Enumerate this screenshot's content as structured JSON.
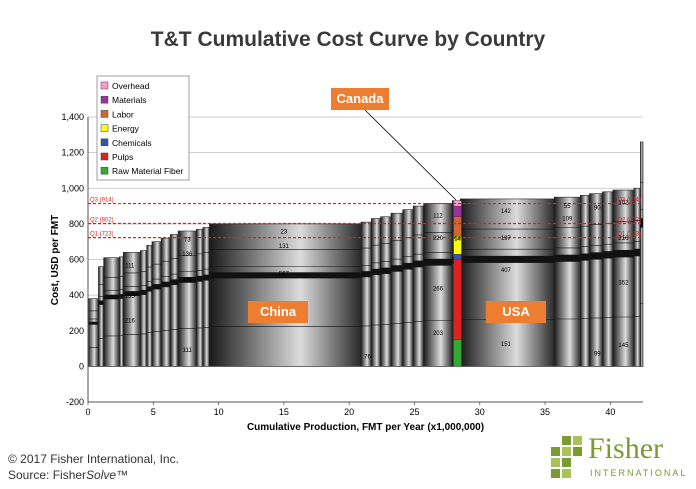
{
  "title": "T&T Cumulative Cost Curve by Country",
  "chart_data": {
    "type": "bar",
    "xlabel": "Cumulative Production, FMT per Year (x1,000,000)",
    "ylabel": "Cost, USD per FMT",
    "xlim": [
      0,
      42.5
    ],
    "ylim": [
      -200,
      1400
    ],
    "x_ticks": [
      "0",
      "5",
      "10",
      "15",
      "20",
      "25",
      "30",
      "35",
      "40"
    ],
    "y_ticks": [
      "-200",
      "0",
      "200",
      "400",
      "600",
      "800",
      "1,000",
      "1,200",
      "1,400"
    ],
    "legend": {
      "placement": "top-left",
      "entries": [
        {
          "name": "Overhead",
          "color": "#ff99cc"
        },
        {
          "name": "Materials",
          "color": "#993399"
        },
        {
          "name": "Labor",
          "color": "#cc6633"
        },
        {
          "name": "Energy",
          "color": "#ffff00"
        },
        {
          "name": "Chemicals",
          "color": "#3355aa"
        },
        {
          "name": "Pulps",
          "color": "#dd2222"
        },
        {
          "name": "Raw Material Fiber",
          "color": "#33aa33"
        }
      ]
    },
    "quartiles": [
      {
        "label": "Q1 (723)",
        "value": 723
      },
      {
        "label": "Q2 (802)",
        "value": 802
      },
      {
        "label": "Q3 (914)",
        "value": 914
      }
    ],
    "mill_bars": [
      {
        "x0": 0.0,
        "x1": 0.8,
        "total": 380
      },
      {
        "x0": 0.8,
        "x1": 1.2,
        "total": 560
      },
      {
        "x0": 1.2,
        "x1": 2.4,
        "total": 610
      },
      {
        "x0": 2.4,
        "x1": 2.7,
        "total": 615
      },
      {
        "x0": 2.7,
        "x1": 4.0,
        "total": 640
      },
      {
        "x0": 4.0,
        "x1": 4.5,
        "total": 650
      },
      {
        "x0": 4.5,
        "x1": 4.9,
        "total": 680
      },
      {
        "x0": 4.9,
        "x1": 5.6,
        "total": 700
      },
      {
        "x0": 5.6,
        "x1": 6.3,
        "total": 720
      },
      {
        "x0": 6.3,
        "x1": 6.9,
        "total": 740
      },
      {
        "x0": 6.9,
        "x1": 8.3,
        "total": 760
      },
      {
        "x0": 8.3,
        "x1": 8.8,
        "total": 770
      },
      {
        "x0": 8.8,
        "x1": 9.3,
        "total": 780
      },
      {
        "x0": 9.3,
        "x1": 20.9,
        "total": 800
      },
      {
        "x0": 20.9,
        "x1": 21.7,
        "total": 810
      },
      {
        "x0": 21.7,
        "x1": 22.4,
        "total": 830
      },
      {
        "x0": 22.4,
        "x1": 23.2,
        "total": 840
      },
      {
        "x0": 23.2,
        "x1": 24.1,
        "total": 860
      },
      {
        "x0": 24.1,
        "x1": 24.9,
        "total": 880
      },
      {
        "x0": 24.9,
        "x1": 25.7,
        "total": 900
      },
      {
        "x0": 25.7,
        "x1": 27.9,
        "total": 915
      },
      {
        "x0": 27.9,
        "x1": 28.5,
        "total": 930
      },
      {
        "x0": 28.5,
        "x1": 35.7,
        "total": 940
      },
      {
        "x0": 35.7,
        "x1": 37.7,
        "total": 950
      },
      {
        "x0": 37.7,
        "x1": 38.4,
        "total": 960
      },
      {
        "x0": 38.4,
        "x1": 39.4,
        "total": 970
      },
      {
        "x0": 39.4,
        "x1": 40.2,
        "total": 980
      },
      {
        "x0": 40.2,
        "x1": 41.8,
        "total": 990
      },
      {
        "x0": 41.8,
        "x1": 42.3,
        "total": 1000
      },
      {
        "x0": 42.3,
        "x1": 42.5,
        "total": 1260
      }
    ],
    "canada_bar": {
      "x0": 28.0,
      "x1": 28.6,
      "total": 930,
      "segments": [
        {
          "component": "Raw Material Fiber",
          "value": 150
        },
        {
          "component": "Pulps",
          "value": 450
        },
        {
          "component": "Chemicals",
          "value": 30
        },
        {
          "component": "Energy",
          "value": 100
        },
        {
          "component": "Labor",
          "value": 110
        },
        {
          "component": "Materials",
          "value": 60
        },
        {
          "component": "Overhead",
          "value": 30
        }
      ]
    },
    "data_labels": [
      {
        "text": "111",
        "x": 3.2,
        "y": 555
      },
      {
        "text": "135",
        "x": 3.2,
        "y": 385
      },
      {
        "text": "216",
        "x": 3.2,
        "y": 245
      },
      {
        "text": "73",
        "x": 7.6,
        "y": 700
      },
      {
        "text": "136",
        "x": 7.6,
        "y": 620
      },
      {
        "text": "375",
        "x": 7.6,
        "y": 470
      },
      {
        "text": "111",
        "x": 7.6,
        "y": 80
      },
      {
        "text": "23",
        "x": 15.0,
        "y": 745
      },
      {
        "text": "131",
        "x": 15.0,
        "y": 665
      },
      {
        "text": "597",
        "x": 15.0,
        "y": 510
      },
      {
        "text": "76",
        "x": 21.4,
        "y": 45
      },
      {
        "text": "112",
        "x": 26.8,
        "y": 835
      },
      {
        "text": "220",
        "x": 26.8,
        "y": 710
      },
      {
        "text": "266",
        "x": 26.8,
        "y": 425
      },
      {
        "text": "203",
        "x": 26.8,
        "y": 175
      },
      {
        "text": "94",
        "x": 28.3,
        "y": 705
      },
      {
        "text": "142",
        "x": 32.0,
        "y": 860
      },
      {
        "text": "197",
        "x": 32.0,
        "y": 710
      },
      {
        "text": "407",
        "x": 32.0,
        "y": 530
      },
      {
        "text": "151",
        "x": 32.0,
        "y": 115
      },
      {
        "text": "55",
        "x": 36.7,
        "y": 890
      },
      {
        "text": "109",
        "x": 36.7,
        "y": 820
      },
      {
        "text": "90",
        "x": 39.0,
        "y": 880
      },
      {
        "text": "99",
        "x": 39.0,
        "y": 60
      },
      {
        "text": "102",
        "x": 41.0,
        "y": 910
      },
      {
        "text": "216",
        "x": 41.0,
        "y": 710
      },
      {
        "text": "352",
        "x": 41.0,
        "y": 460
      },
      {
        "text": "145",
        "x": 41.0,
        "y": 110
      }
    ]
  },
  "callouts": {
    "canada": "Canada",
    "china": "China",
    "usa": "USA"
  },
  "footer": {
    "copyright": "© 2017 Fisher International, Inc.",
    "source_label": "Source: ",
    "source_name_a": "Fisher",
    "source_name_b": "Solve™",
    "logo_word": "Fisher",
    "logo_sub": "INTERNATIONAL"
  }
}
